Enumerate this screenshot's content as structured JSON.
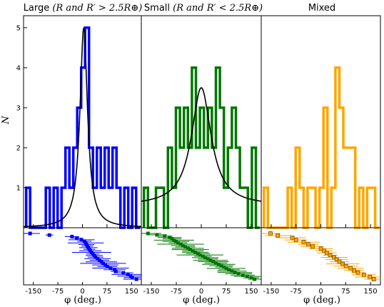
{
  "chart_data": [
    {
      "type": "histogram",
      "title_text": "Large ",
      "title_math": "(R and R′ > 2.5R⊕)",
      "ylabel": "N",
      "xlabel": "φ (deg.)",
      "xlim": [
        -180,
        180
      ],
      "ylim": [
        0,
        5.3
      ],
      "x_ticks": [
        "-150",
        "-75",
        "0",
        "75",
        "150"
      ],
      "y_ticks": [
        "1",
        "2",
        "3",
        "4",
        "5"
      ],
      "color": "#0000ff",
      "bin_edges": [
        -172,
        -160,
        -148,
        -136,
        -124,
        -112,
        -100,
        -88,
        -76,
        -64,
        -52,
        -40,
        -28,
        -16,
        -4,
        8,
        20,
        32,
        44,
        56,
        68,
        80,
        92,
        104,
        116,
        128,
        140,
        152,
        164,
        176
      ],
      "counts": [
        1,
        0,
        0,
        0,
        0,
        1,
        0,
        1,
        0,
        1,
        2,
        1,
        2,
        3,
        4,
        5,
        2,
        1,
        2,
        1,
        2,
        1,
        2,
        1,
        0,
        1,
        0,
        1,
        0
      ],
      "fit_curve": {
        "center": 4,
        "width": 14,
        "peak": 5.0
      },
      "scatter": [
        {
          "phi": -160,
          "err": 30
        },
        {
          "phi": -101,
          "err": 12
        },
        {
          "phi": -32,
          "err": 22
        },
        {
          "phi": -17,
          "err": 16
        },
        {
          "phi": -3,
          "err": 40
        },
        {
          "phi": 6,
          "err": 22
        },
        {
          "phi": 10,
          "err": 55
        },
        {
          "phi": 12,
          "err": 24
        },
        {
          "phi": 15,
          "err": 18
        },
        {
          "phi": 18,
          "err": 28
        },
        {
          "phi": 21,
          "err": 18
        },
        {
          "phi": 24,
          "err": 34
        },
        {
          "phi": 28,
          "err": 60
        },
        {
          "phi": 32,
          "err": 20
        },
        {
          "phi": 36,
          "err": 26
        },
        {
          "phi": 40,
          "err": 24
        },
        {
          "phi": 46,
          "err": 40
        },
        {
          "phi": 52,
          "err": 30
        },
        {
          "phi": 58,
          "err": 48
        },
        {
          "phi": 63,
          "err": 70
        },
        {
          "phi": 70,
          "err": 40
        },
        {
          "phi": 76,
          "err": 30
        },
        {
          "phi": 86,
          "err": 56
        },
        {
          "phi": 98,
          "err": 34
        },
        {
          "phi": 102,
          "err": 16
        },
        {
          "phi": 125,
          "err": 30
        },
        {
          "phi": 139,
          "err": 50
        },
        {
          "phi": 147,
          "err": 40
        },
        {
          "phi": 152,
          "err": 26
        },
        {
          "phi": 165,
          "err": 40
        }
      ]
    },
    {
      "type": "histogram",
      "title_text": "Small ",
      "title_math": "(R and R′ < 2.5R⊕)",
      "ylabel": "",
      "xlabel": "φ (deg.)",
      "xlim": [
        -180,
        180
      ],
      "ylim": [
        0,
        5.3
      ],
      "x_ticks": [
        "-150",
        "-75",
        "0",
        "75",
        "150"
      ],
      "y_ticks": [],
      "color": "#007700",
      "bin_edges": [
        -172,
        -160,
        -148,
        -136,
        -124,
        -112,
        -100,
        -88,
        -76,
        -64,
        -52,
        -40,
        -28,
        -16,
        -4,
        8,
        20,
        32,
        44,
        56,
        68,
        80,
        92,
        104,
        116,
        128,
        140,
        152,
        164,
        176
      ],
      "counts": [
        1,
        0,
        0,
        1,
        1,
        0,
        2,
        1,
        3,
        2,
        3,
        2,
        4,
        2,
        3,
        2,
        3,
        2,
        4,
        3,
        1,
        2,
        3,
        2,
        1,
        1,
        0,
        2,
        0
      ],
      "fit_curve": {
        "center": 0,
        "width": 36,
        "peak": 3.5,
        "baseline": 0.55
      },
      "scatter": [
        {
          "phi": -160,
          "err": 40
        },
        {
          "phi": -133,
          "err": 30
        },
        {
          "phi": -110,
          "err": 24
        },
        {
          "phi": -95,
          "err": 36
        },
        {
          "phi": -88,
          "err": 28
        },
        {
          "phi": -82,
          "err": 60
        },
        {
          "phi": -76,
          "err": 40
        },
        {
          "phi": -70,
          "err": 28
        },
        {
          "phi": -62,
          "err": 70
        },
        {
          "phi": -55,
          "err": 36
        },
        {
          "phi": -48,
          "err": 30
        },
        {
          "phi": -40,
          "err": 48
        },
        {
          "phi": -33,
          "err": 56
        },
        {
          "phi": -25,
          "err": 32
        },
        {
          "phi": -18,
          "err": 40
        },
        {
          "phi": -10,
          "err": 36
        },
        {
          "phi": -4,
          "err": 70
        },
        {
          "phi": 5,
          "err": 26
        },
        {
          "phi": 12,
          "err": 40
        },
        {
          "phi": 20,
          "err": 30
        },
        {
          "phi": 28,
          "err": 52
        },
        {
          "phi": 36,
          "err": 46
        },
        {
          "phi": 44,
          "err": 34
        },
        {
          "phi": 52,
          "err": 50
        },
        {
          "phi": 60,
          "err": 36
        },
        {
          "phi": 68,
          "err": 26
        },
        {
          "phi": 75,
          "err": 58
        },
        {
          "phi": 83,
          "err": 32
        },
        {
          "phi": 92,
          "err": 44
        },
        {
          "phi": 101,
          "err": 52
        },
        {
          "phi": 112,
          "err": 40
        },
        {
          "phi": 125,
          "err": 36
        },
        {
          "phi": 138,
          "err": 40
        },
        {
          "phi": 150,
          "err": 24
        },
        {
          "phi": 160,
          "err": 20
        }
      ]
    },
    {
      "type": "histogram",
      "title_text": "Mixed",
      "title_math": "",
      "ylabel": "",
      "xlabel": "φ (deg.)",
      "xlim": [
        -180,
        180
      ],
      "ylim": [
        0,
        5.3
      ],
      "x_ticks": [
        "-150",
        "-75",
        "0",
        "75",
        "150"
      ],
      "y_ticks": [],
      "color": "#ffa500",
      "bin_edges": [
        -172,
        -160,
        -148,
        -136,
        -124,
        -112,
        -100,
        -88,
        -76,
        -64,
        -52,
        -40,
        -28,
        -16,
        -4,
        8,
        20,
        32,
        44,
        56,
        68,
        80,
        92,
        104,
        116,
        128,
        140,
        152,
        164,
        176
      ],
      "counts": [
        1,
        0,
        0,
        0,
        0,
        0,
        1,
        0,
        2,
        1,
        0,
        1,
        1,
        0,
        1,
        3,
        0,
        1,
        4,
        3,
        2,
        2,
        2,
        0,
        1,
        0,
        1,
        1,
        0
      ],
      "fit_curve": null,
      "scatter": [
        {
          "phi": -152,
          "err": 30
        },
        {
          "phi": -130,
          "err": 40
        },
        {
          "phi": -86,
          "err": 40
        },
        {
          "phi": -75,
          "err": 34
        },
        {
          "phi": -52,
          "err": 48
        },
        {
          "phi": -38,
          "err": 30
        },
        {
          "phi": -25,
          "err": 34
        },
        {
          "phi": 0,
          "err": 36
        },
        {
          "phi": 10,
          "err": 26
        },
        {
          "phi": 18,
          "err": 30
        },
        {
          "phi": 28,
          "err": 22
        },
        {
          "phi": 40,
          "err": 40
        },
        {
          "phi": 48,
          "err": 34
        },
        {
          "phi": 56,
          "err": 30
        },
        {
          "phi": 66,
          "err": 50
        },
        {
          "phi": 76,
          "err": 36
        },
        {
          "phi": 90,
          "err": 40
        },
        {
          "phi": 100,
          "err": 30
        },
        {
          "phi": 112,
          "err": 20
        },
        {
          "phi": 130,
          "err": 36
        },
        {
          "phi": 148,
          "err": 44
        },
        {
          "phi": 160,
          "err": 28
        }
      ]
    }
  ]
}
